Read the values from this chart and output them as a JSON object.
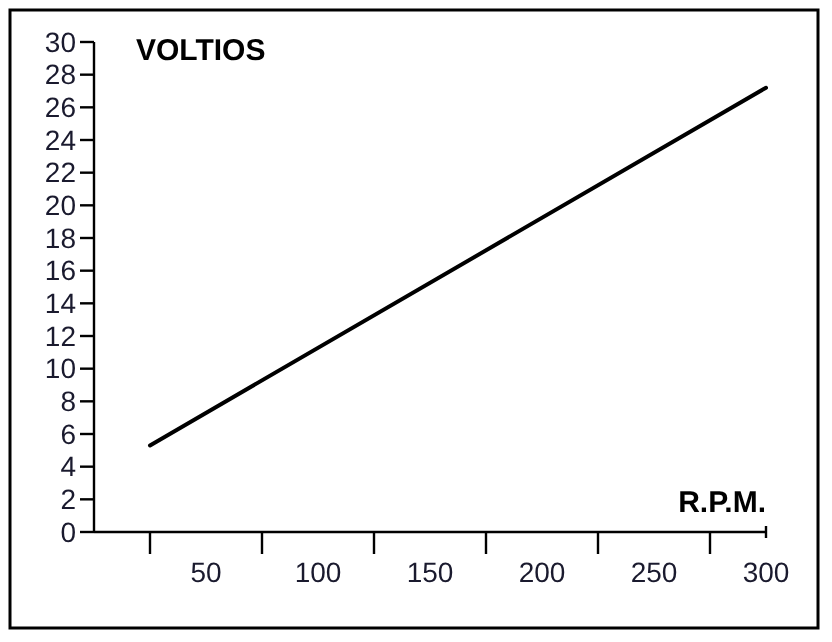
{
  "chart_data": {
    "type": "line",
    "xlabel": "R.P.M.",
    "ylabel": "VOLTIOS",
    "series": [
      {
        "color": "#000000",
        "x": [
          25,
          300
        ],
        "values": [
          5.3,
          27.2
        ]
      }
    ],
    "xlim": [
      0,
      300
    ],
    "ylim": [
      0,
      30
    ],
    "xticks": [
      {
        "value": 25,
        "label": null
      },
      50,
      {
        "value": 75,
        "label": null
      },
      100,
      {
        "value": 125,
        "label": null
      },
      150,
      {
        "value": 175,
        "label": null
      },
      200,
      {
        "value": 225,
        "label": null
      },
      250,
      {
        "value": 275,
        "label": null
      },
      300
    ],
    "yticks": [
      0,
      2,
      4,
      6,
      8,
      10,
      12,
      14,
      16,
      18,
      20,
      22,
      24,
      26,
      28,
      30
    ],
    "grid": false,
    "marker": "none",
    "line_style": "solid"
  }
}
